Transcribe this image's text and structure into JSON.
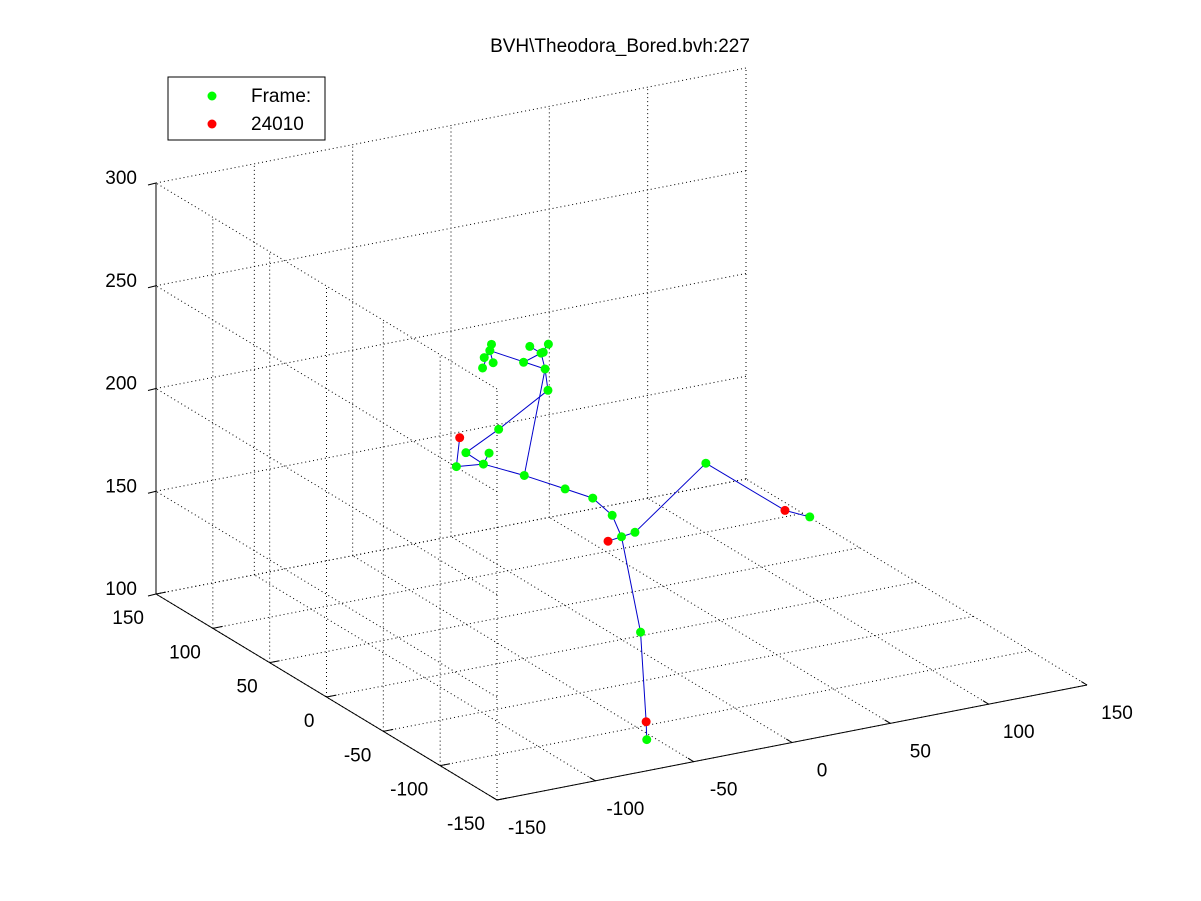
{
  "chart_data": {
    "type": "scatter",
    "title": "BVH\\Theodora_Bored.bvh:227",
    "legend": {
      "placement": "top-left",
      "entries": [
        {
          "label": "Frame:",
          "color": "#00ff00"
        },
        {
          "label": "24010",
          "color": "#ff0000"
        }
      ]
    },
    "grid": true,
    "axes": {
      "x": {
        "ticks": [
          -150,
          -100,
          -50,
          0,
          50,
          100,
          150
        ],
        "range": [
          -150,
          150
        ]
      },
      "y": {
        "ticks": [
          -150,
          -100,
          -50,
          0,
          50,
          100,
          150
        ],
        "range": [
          -150,
          150
        ]
      },
      "z": {
        "ticks": [
          100,
          150,
          200,
          250,
          300
        ],
        "range": [
          100,
          300
        ]
      }
    },
    "colors": {
      "joint": "#00ff00",
      "endpoint": "#ff0000",
      "bone": "#0000cc"
    },
    "joints": [
      {
        "id": "root",
        "x": 0,
        "y": 0,
        "z": 150
      },
      {
        "id": "hipL",
        "x": 8,
        "y": 2,
        "z": 150
      },
      {
        "id": "hipR",
        "x": -8,
        "y": -2,
        "z": 150
      },
      {
        "id": "spine1",
        "x": -3,
        "y": 3,
        "z": 160
      },
      {
        "id": "spine2",
        "x": -10,
        "y": 8,
        "z": 168
      },
      {
        "id": "chest",
        "x": -20,
        "y": 15,
        "z": 172
      },
      {
        "id": "neck",
        "x": -35,
        "y": 25,
        "z": 178
      },
      {
        "id": "head",
        "x": -50,
        "y": 35,
        "z": 183
      },
      {
        "id": "headTop",
        "x": -62,
        "y": 38,
        "z": 183
      },
      {
        "id": "headEnd",
        "x": -58,
        "y": 42,
        "z": 195
      },
      {
        "id": "shL",
        "x": -50,
        "y": 30,
        "z": 190
      },
      {
        "id": "shR",
        "x": -56,
        "y": 40,
        "z": 188
      },
      {
        "id": "elbowR",
        "x": -22,
        "y": 70,
        "z": 183
      },
      {
        "id": "wristR",
        "x": 10,
        "y": 82,
        "z": 192
      },
      {
        "id": "handR",
        "x": 12,
        "y": 88,
        "z": 200
      },
      {
        "id": "fR1",
        "x": 14,
        "y": 95,
        "z": 205
      },
      {
        "id": "fR2",
        "x": 10,
        "y": 98,
        "z": 208
      },
      {
        "id": "fR3",
        "x": 16,
        "y": 92,
        "z": 210
      },
      {
        "id": "fR4",
        "x": 18,
        "y": 100,
        "z": 203
      },
      {
        "id": "fR5",
        "x": 8,
        "y": 100,
        "z": 200
      },
      {
        "id": "elbowL",
        "x": 40,
        "y": -5,
        "z": 180
      },
      {
        "id": "wristL",
        "x": 60,
        "y": -40,
        "z": 165
      },
      {
        "id": "handL",
        "x": 68,
        "y": -48,
        "z": 163
      },
      {
        "id": "fL1",
        "x": -8,
        "y": 102,
        "z": 208
      },
      {
        "id": "fL2",
        "x": -12,
        "y": 100,
        "z": 206
      },
      {
        "id": "fL3",
        "x": -6,
        "y": 104,
        "z": 210
      },
      {
        "id": "fL4",
        "x": -14,
        "y": 98,
        "z": 202
      },
      {
        "id": "fL5",
        "x": -4,
        "y": 106,
        "z": 200
      },
      {
        "id": "kneeL",
        "x": 12,
        "y": 4,
        "z": 100
      },
      {
        "id": "ankleL",
        "x": 16,
        "y": 6,
        "z": 55
      },
      {
        "id": "toeL",
        "x": 14,
        "y": 2,
        "z": 48
      }
    ],
    "endpoints": [
      "headEnd",
      "hipR",
      "wristL",
      "ankleL"
    ],
    "bones": [
      [
        "root",
        "hipL"
      ],
      [
        "root",
        "hipR"
      ],
      [
        "root",
        "spine1"
      ],
      [
        "spine1",
        "spine2"
      ],
      [
        "spine2",
        "chest"
      ],
      [
        "chest",
        "neck"
      ],
      [
        "neck",
        "head"
      ],
      [
        "head",
        "headTop"
      ],
      [
        "head",
        "shL"
      ],
      [
        "head",
        "shR"
      ],
      [
        "headTop",
        "headEnd"
      ],
      [
        "shR",
        "elbowR"
      ],
      [
        "elbowR",
        "wristR"
      ],
      [
        "wristR",
        "handR"
      ],
      [
        "handR",
        "fR1"
      ],
      [
        "fR1",
        "fR2"
      ],
      [
        "fR1",
        "fR3"
      ],
      [
        "fR1",
        "fR4"
      ],
      [
        "fR1",
        "fR5"
      ],
      [
        "handR",
        "neck"
      ],
      [
        "hipL",
        "elbowL"
      ],
      [
        "elbowL",
        "wristL"
      ],
      [
        "wristL",
        "handL"
      ],
      [
        "handR",
        "fL1"
      ],
      [
        "fL1",
        "fL2"
      ],
      [
        "fL1",
        "fL3"
      ],
      [
        "fL1",
        "fL4"
      ],
      [
        "fL1",
        "fL5"
      ],
      [
        "root",
        "kneeL"
      ],
      [
        "kneeL",
        "ankleL"
      ],
      [
        "ankleL",
        "toeL"
      ]
    ]
  }
}
